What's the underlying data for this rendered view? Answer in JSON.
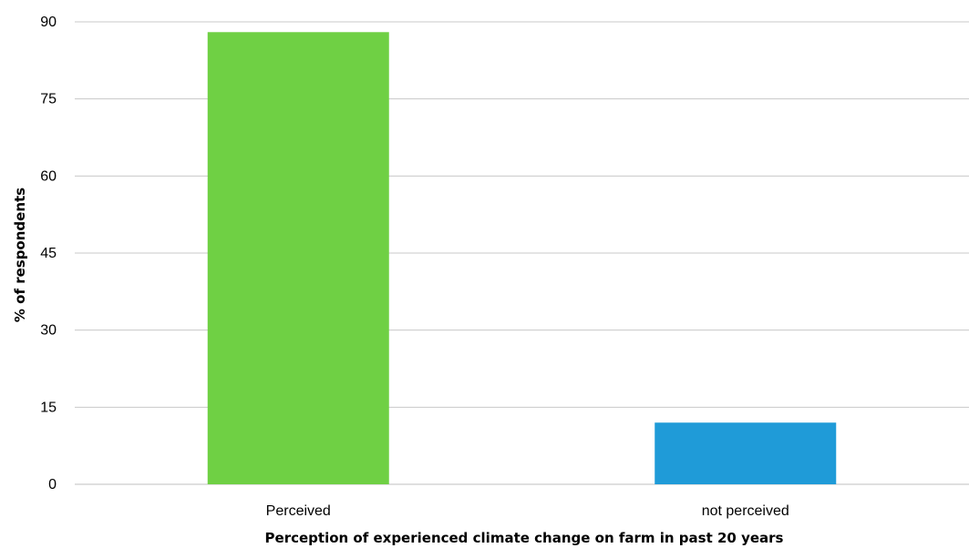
{
  "chart_data": {
    "type": "bar",
    "categories": [
      "Perceived",
      "not perceived"
    ],
    "values": [
      88,
      12
    ],
    "colors": [
      "#6fd044",
      "#1f9bd8"
    ],
    "title": "",
    "xlabel": "Perception of experienced climate change on farm in past 20 years",
    "ylabel": "% of respondents",
    "ylim": [
      0,
      90
    ],
    "yticks": [
      0,
      15,
      30,
      45,
      60,
      75,
      90
    ],
    "grid": true,
    "legend": "none"
  }
}
